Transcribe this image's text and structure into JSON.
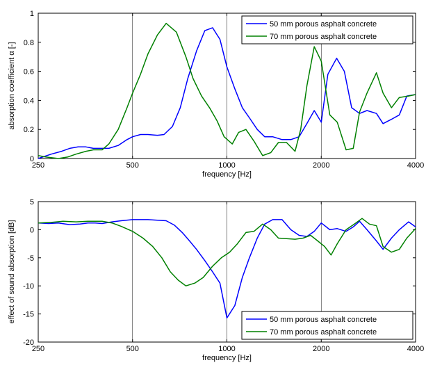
{
  "chart_data": [
    {
      "type": "line",
      "xscale": "log",
      "xlim": [
        250,
        4000
      ],
      "ylim": [
        0,
        1
      ],
      "xlabel": "frequency [Hz]",
      "ylabel": "absorption coefficient α [-]",
      "xticks": [
        250,
        500,
        1000,
        2000,
        4000
      ],
      "xtick_labels": [
        "250",
        "500",
        "1000",
        "2000",
        "4000"
      ],
      "yticks": [
        0,
        0.2,
        0.4,
        0.6,
        0.8,
        1
      ],
      "ytick_labels": [
        "0",
        "0.2",
        "0.4",
        "0.6",
        "0.8",
        "1"
      ],
      "grid": "x-only",
      "legend_position": "top-right",
      "series": [
        {
          "name": "50 mm porous asphalt concrete",
          "color": "#0000ff",
          "points": [
            [
              250,
              0
            ],
            [
              275,
              0.03
            ],
            [
              297,
              0.05
            ],
            [
              315,
              0.07
            ],
            [
              335,
              0.08
            ],
            [
              355,
              0.08
            ],
            [
              375,
              0.07
            ],
            [
              400,
              0.07
            ],
            [
              420,
              0.07
            ],
            [
              450,
              0.09
            ],
            [
              480,
              0.13
            ],
            [
              500,
              0.15
            ],
            [
              530,
              0.165
            ],
            [
              560,
              0.165
            ],
            [
              600,
              0.16
            ],
            [
              630,
              0.165
            ],
            [
              670,
              0.22
            ],
            [
              710,
              0.35
            ],
            [
              750,
              0.55
            ],
            [
              800,
              0.74
            ],
            [
              850,
              0.88
            ],
            [
              900,
              0.9
            ],
            [
              950,
              0.82
            ],
            [
              1000,
              0.63
            ],
            [
              1060,
              0.48
            ],
            [
              1120,
              0.35
            ],
            [
              1180,
              0.28
            ],
            [
              1250,
              0.2
            ],
            [
              1320,
              0.15
            ],
            [
              1400,
              0.15
            ],
            [
              1500,
              0.13
            ],
            [
              1600,
              0.13
            ],
            [
              1700,
              0.15
            ],
            [
              1800,
              0.24
            ],
            [
              1900,
              0.33
            ],
            [
              2000,
              0.25
            ],
            [
              2100,
              0.58
            ],
            [
              2240,
              0.69
            ],
            [
              2370,
              0.6
            ],
            [
              2500,
              0.35
            ],
            [
              2650,
              0.31
            ],
            [
              2800,
              0.33
            ],
            [
              3000,
              0.31
            ],
            [
              3150,
              0.24
            ],
            [
              3350,
              0.27
            ],
            [
              3550,
              0.3
            ],
            [
              3750,
              0.43
            ],
            [
              4000,
              0.44
            ]
          ]
        },
        {
          "name": "70 mm porous asphalt concrete",
          "color": "#008000",
          "points": [
            [
              250,
              0.02
            ],
            [
              265,
              0.01
            ],
            [
              290,
              0
            ],
            [
              310,
              0.01
            ],
            [
              330,
              0.03
            ],
            [
              355,
              0.05
            ],
            [
              375,
              0.06
            ],
            [
              400,
              0.06
            ],
            [
              420,
              0.1
            ],
            [
              450,
              0.2
            ],
            [
              480,
              0.35
            ],
            [
              500,
              0.45
            ],
            [
              530,
              0.58
            ],
            [
              560,
              0.72
            ],
            [
              600,
              0.85
            ],
            [
              640,
              0.93
            ],
            [
              690,
              0.87
            ],
            [
              740,
              0.7
            ],
            [
              780,
              0.55
            ],
            [
              830,
              0.43
            ],
            [
              880,
              0.35
            ],
            [
              930,
              0.26
            ],
            [
              980,
              0.15
            ],
            [
              1040,
              0.1
            ],
            [
              1090,
              0.18
            ],
            [
              1150,
              0.2
            ],
            [
              1220,
              0.12
            ],
            [
              1300,
              0.02
            ],
            [
              1380,
              0.04
            ],
            [
              1460,
              0.11
            ],
            [
              1550,
              0.11
            ],
            [
              1650,
              0.05
            ],
            [
              1720,
              0.2
            ],
            [
              1800,
              0.5
            ],
            [
              1900,
              0.77
            ],
            [
              2000,
              0.67
            ],
            [
              2130,
              0.3
            ],
            [
              2250,
              0.25
            ],
            [
              2400,
              0.06
            ],
            [
              2530,
              0.07
            ],
            [
              2650,
              0.32
            ],
            [
              2800,
              0.45
            ],
            [
              3000,
              0.59
            ],
            [
              3150,
              0.45
            ],
            [
              3350,
              0.35
            ],
            [
              3550,
              0.42
            ],
            [
              3800,
              0.43
            ],
            [
              4000,
              0.44
            ]
          ]
        }
      ]
    },
    {
      "type": "line",
      "xscale": "log",
      "xlim": [
        250,
        4000
      ],
      "ylim": [
        -20,
        5
      ],
      "xlabel": "frequency [Hz]",
      "ylabel": "effect of sound absorption [dB]",
      "xticks": [
        250,
        500,
        1000,
        2000,
        4000
      ],
      "xtick_labels": [
        "250",
        "500",
        "1000",
        "2000",
        "4000"
      ],
      "yticks": [
        -20,
        -15,
        -10,
        -5,
        0,
        5
      ],
      "ytick_labels": [
        "-20",
        "-15",
        "-10",
        "-5",
        "0",
        "5"
      ],
      "grid": "x-only",
      "legend_position": "bottom-right",
      "series": [
        {
          "name": "50 mm porous asphalt concrete",
          "color": "#0000ff",
          "points": [
            [
              250,
              1.2
            ],
            [
              270,
              1.1
            ],
            [
              290,
              1.2
            ],
            [
              315,
              0.9
            ],
            [
              340,
              1.0
            ],
            [
              360,
              1.2
            ],
            [
              380,
              1.2
            ],
            [
              400,
              1.1
            ],
            [
              430,
              1.4
            ],
            [
              460,
              1.6
            ],
            [
              500,
              1.8
            ],
            [
              530,
              1.8
            ],
            [
              560,
              1.8
            ],
            [
              600,
              1.7
            ],
            [
              640,
              1.6
            ],
            [
              680,
              0.8
            ],
            [
              720,
              -0.5
            ],
            [
              760,
              -2.0
            ],
            [
              800,
              -3.5
            ],
            [
              850,
              -5.5
            ],
            [
              900,
              -7.5
            ],
            [
              950,
              -9.5
            ],
            [
              1000,
              -15.7
            ],
            [
              1060,
              -13.5
            ],
            [
              1120,
              -8.5
            ],
            [
              1180,
              -5.0
            ],
            [
              1250,
              -1.5
            ],
            [
              1320,
              1.0
            ],
            [
              1400,
              1.8
            ],
            [
              1500,
              1.8
            ],
            [
              1600,
              0
            ],
            [
              1700,
              -1.0
            ],
            [
              1800,
              -1.2
            ],
            [
              1900,
              -0.3
            ],
            [
              2000,
              1.2
            ],
            [
              2130,
              0
            ],
            [
              2250,
              0.2
            ],
            [
              2400,
              -0.3
            ],
            [
              2530,
              0.5
            ],
            [
              2650,
              1.5
            ],
            [
              2800,
              0
            ],
            [
              3000,
              -2.0
            ],
            [
              3150,
              -3.5
            ],
            [
              3350,
              -1.5
            ],
            [
              3550,
              0
            ],
            [
              3800,
              1.4
            ],
            [
              4000,
              0.5
            ]
          ]
        },
        {
          "name": "70 mm porous asphalt concrete",
          "color": "#008000",
          "points": [
            [
              250,
              1.2
            ],
            [
              275,
              1.3
            ],
            [
              300,
              1.5
            ],
            [
              330,
              1.4
            ],
            [
              360,
              1.5
            ],
            [
              400,
              1.5
            ],
            [
              430,
              1.2
            ],
            [
              460,
              0.6
            ],
            [
              500,
              -0.3
            ],
            [
              540,
              -1.5
            ],
            [
              580,
              -3.0
            ],
            [
              620,
              -5.0
            ],
            [
              660,
              -7.5
            ],
            [
              700,
              -9.0
            ],
            [
              740,
              -10.0
            ],
            [
              790,
              -9.5
            ],
            [
              840,
              -8.5
            ],
            [
              900,
              -6.5
            ],
            [
              960,
              -5.0
            ],
            [
              1020,
              -4.0
            ],
            [
              1080,
              -2.5
            ],
            [
              1150,
              -0.5
            ],
            [
              1220,
              -0.3
            ],
            [
              1300,
              1.0
            ],
            [
              1380,
              0
            ],
            [
              1460,
              -1.5
            ],
            [
              1550,
              -1.6
            ],
            [
              1650,
              -1.7
            ],
            [
              1750,
              -1.5
            ],
            [
              1850,
              -1.0
            ],
            [
              1950,
              -2.0
            ],
            [
              2050,
              -3.0
            ],
            [
              2150,
              -4.5
            ],
            [
              2250,
              -2.5
            ],
            [
              2400,
              0
            ],
            [
              2550,
              1.0
            ],
            [
              2700,
              2.0
            ],
            [
              2850,
              1.0
            ],
            [
              3000,
              0.7
            ],
            [
              3150,
              -3.0
            ],
            [
              3350,
              -4.0
            ],
            [
              3550,
              -3.5
            ],
            [
              3750,
              -1.5
            ],
            [
              4000,
              0.2
            ]
          ]
        }
      ]
    }
  ]
}
